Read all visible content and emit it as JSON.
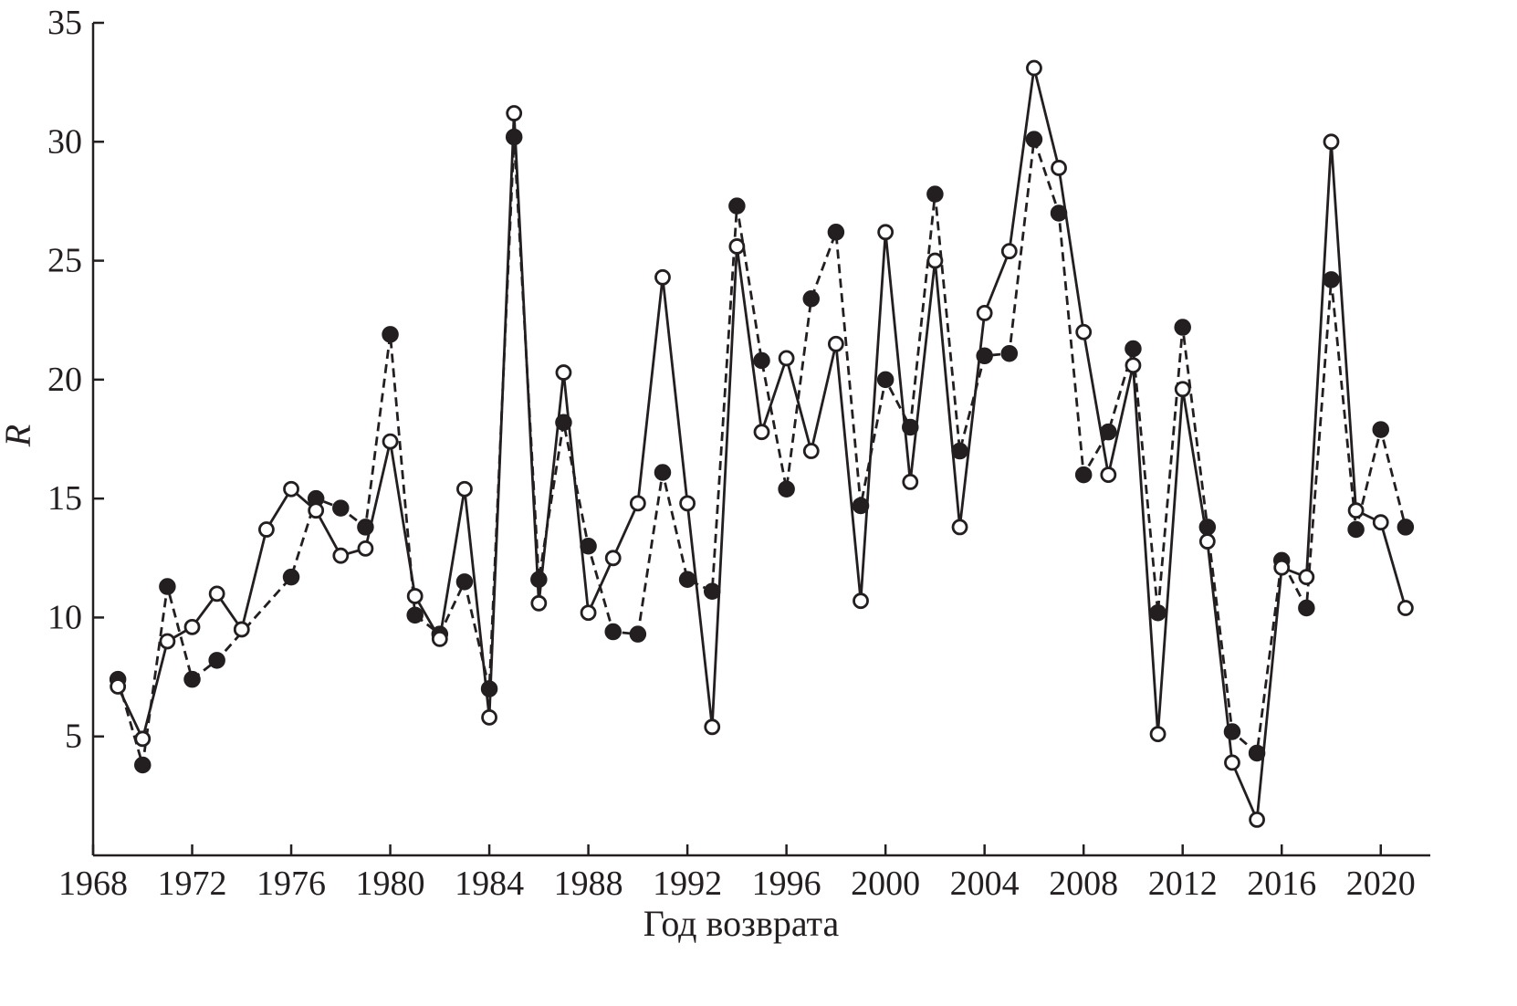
{
  "chart_data": {
    "type": "line",
    "xlabel": "Год возврата",
    "ylabel": "R",
    "xlim": [
      1968,
      2022
    ],
    "ylim": [
      0,
      35
    ],
    "x_ticks": [
      1968,
      1972,
      1976,
      1980,
      1984,
      1988,
      1992,
      1996,
      2000,
      2004,
      2008,
      2012,
      2016,
      2020
    ],
    "y_ticks": [
      5,
      10,
      15,
      20,
      25,
      30,
      35
    ],
    "grid": false,
    "legend": "none",
    "series": [
      {
        "style": "solid line, open circle markers",
        "color": "#231f20",
        "marker": "open",
        "dash": "solid",
        "points": [
          [
            1969,
            7.1
          ],
          [
            1970,
            4.9
          ],
          [
            1971,
            9.0
          ],
          [
            1972,
            9.6
          ],
          [
            1973,
            11.0
          ],
          [
            1974,
            9.5
          ],
          [
            1975,
            13.7
          ],
          [
            1976,
            15.4
          ],
          [
            1977,
            14.5
          ],
          [
            1978,
            12.6
          ],
          [
            1979,
            12.9
          ],
          [
            1980,
            17.4
          ],
          [
            1981,
            10.9
          ],
          [
            1982,
            9.1
          ],
          [
            1983,
            15.4
          ],
          [
            1984,
            5.8
          ],
          [
            1985,
            31.2
          ],
          [
            1986,
            10.6
          ],
          [
            1987,
            20.3
          ],
          [
            1988,
            10.2
          ],
          [
            1989,
            12.5
          ],
          [
            1990,
            14.8
          ],
          [
            1991,
            24.3
          ],
          [
            1992,
            14.8
          ],
          [
            1993,
            5.4
          ],
          [
            1994,
            25.6
          ],
          [
            1995,
            17.8
          ],
          [
            1996,
            20.9
          ],
          [
            1997,
            17.0
          ],
          [
            1998,
            21.5
          ],
          [
            1999,
            10.7
          ],
          [
            2000,
            26.2
          ],
          [
            2001,
            15.7
          ],
          [
            2002,
            25.0
          ],
          [
            2003,
            13.8
          ],
          [
            2004,
            22.8
          ],
          [
            2005,
            25.4
          ],
          [
            2006,
            33.1
          ],
          [
            2007,
            28.9
          ],
          [
            2008,
            22.0
          ],
          [
            2009,
            16.0
          ],
          [
            2010,
            20.6
          ],
          [
            2011,
            5.1
          ],
          [
            2012,
            19.6
          ],
          [
            2013,
            13.2
          ],
          [
            2014,
            3.9
          ],
          [
            2015,
            1.5
          ],
          [
            2016,
            12.1
          ],
          [
            2017,
            11.7
          ],
          [
            2018,
            30.0
          ],
          [
            2019,
            14.5
          ],
          [
            2020,
            14.0
          ],
          [
            2021,
            10.4
          ]
        ]
      },
      {
        "style": "dashed line, filled circle markers",
        "color": "#231f20",
        "marker": "filled",
        "dash": "dashed",
        "points": [
          [
            1969,
            7.4
          ],
          [
            1970,
            3.8
          ],
          [
            1971,
            11.3
          ],
          [
            1972,
            7.4
          ],
          [
            1973,
            8.2
          ],
          [
            1976,
            11.7
          ],
          [
            1977,
            15.0
          ],
          [
            1978,
            14.6
          ],
          [
            1979,
            13.8
          ],
          [
            1980,
            21.9
          ],
          [
            1981,
            10.1
          ],
          [
            1982,
            9.3
          ],
          [
            1983,
            11.5
          ],
          [
            1984,
            7.0
          ],
          [
            1985,
            30.2
          ],
          [
            1986,
            11.6
          ],
          [
            1987,
            18.2
          ],
          [
            1988,
            13.0
          ],
          [
            1989,
            9.4
          ],
          [
            1990,
            9.3
          ],
          [
            1991,
            16.1
          ],
          [
            1992,
            11.6
          ],
          [
            1993,
            11.1
          ],
          [
            1994,
            27.3
          ],
          [
            1995,
            20.8
          ],
          [
            1996,
            15.4
          ],
          [
            1997,
            23.4
          ],
          [
            1998,
            26.2
          ],
          [
            1999,
            14.7
          ],
          [
            2000,
            20.0
          ],
          [
            2001,
            18.0
          ],
          [
            2002,
            27.8
          ],
          [
            2003,
            17.0
          ],
          [
            2004,
            21.0
          ],
          [
            2005,
            21.1
          ],
          [
            2006,
            30.1
          ],
          [
            2007,
            27.0
          ],
          [
            2008,
            16.0
          ],
          [
            2009,
            17.8
          ],
          [
            2010,
            21.3
          ],
          [
            2011,
            10.2
          ],
          [
            2012,
            22.2
          ],
          [
            2013,
            13.8
          ],
          [
            2014,
            5.2
          ],
          [
            2015,
            4.3
          ],
          [
            2016,
            12.4
          ],
          [
            2017,
            10.4
          ],
          [
            2018,
            24.2
          ],
          [
            2019,
            13.7
          ],
          [
            2020,
            17.9
          ],
          [
            2021,
            13.8
          ]
        ]
      }
    ]
  }
}
